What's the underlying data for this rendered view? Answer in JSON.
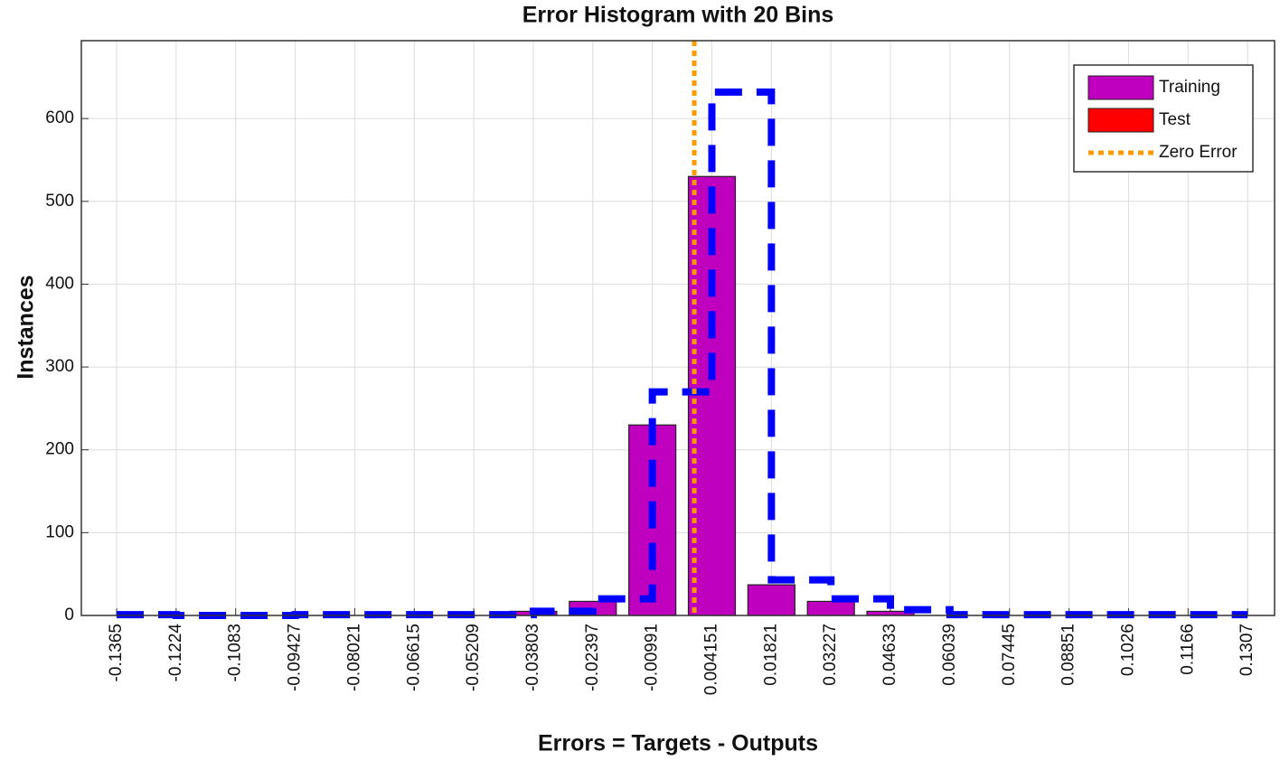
{
  "chart_data": {
    "type": "histogram",
    "title": "Error Histogram with 20 Bins",
    "x_label": "Errors = Targets - Outputs",
    "y_label": "Instances",
    "categories": [
      "-0.1365",
      "-0.1224",
      "-0.1083",
      "-0.09427",
      "-0.08021",
      "-0.06615",
      "-0.05209",
      "-0.03803",
      "-0.02397",
      "-0.00991",
      "0.004151",
      "0.01821",
      "0.03227",
      "0.04633",
      "0.06039",
      "0.07445",
      "0.08851",
      "0.1026",
      "0.1166",
      "0.1307"
    ],
    "series": [
      {
        "name": "Training",
        "color": "#bf00bf",
        "style": "bar",
        "values": [
          0,
          0,
          0,
          0,
          0,
          0,
          0,
          5,
          17,
          230,
          530,
          37,
          17,
          5,
          0,
          0,
          0,
          0,
          0,
          0
        ]
      },
      {
        "name": "Test",
        "color": "#ff0000",
        "style": "bar",
        "values": [
          0,
          0,
          0,
          0,
          0,
          0,
          0,
          0,
          0,
          0,
          0,
          0,
          0,
          0,
          0,
          0,
          0,
          0,
          0,
          0
        ]
      },
      {
        "color": "#0000ff",
        "style": "dashed-step",
        "values": [
          1,
          0,
          0,
          1,
          1,
          1,
          1,
          5,
          20,
          270,
          632,
          43,
          20,
          7,
          1,
          1,
          1,
          1,
          1,
          1
        ]
      }
    ],
    "zero_line": {
      "name": "Zero Error",
      "color": "#ff9900",
      "x": 0
    },
    "ylim": [
      0,
      694
    ],
    "yticks": [
      0,
      100,
      200,
      300,
      400,
      500,
      600
    ],
    "grid": true,
    "legend": "top-right"
  }
}
